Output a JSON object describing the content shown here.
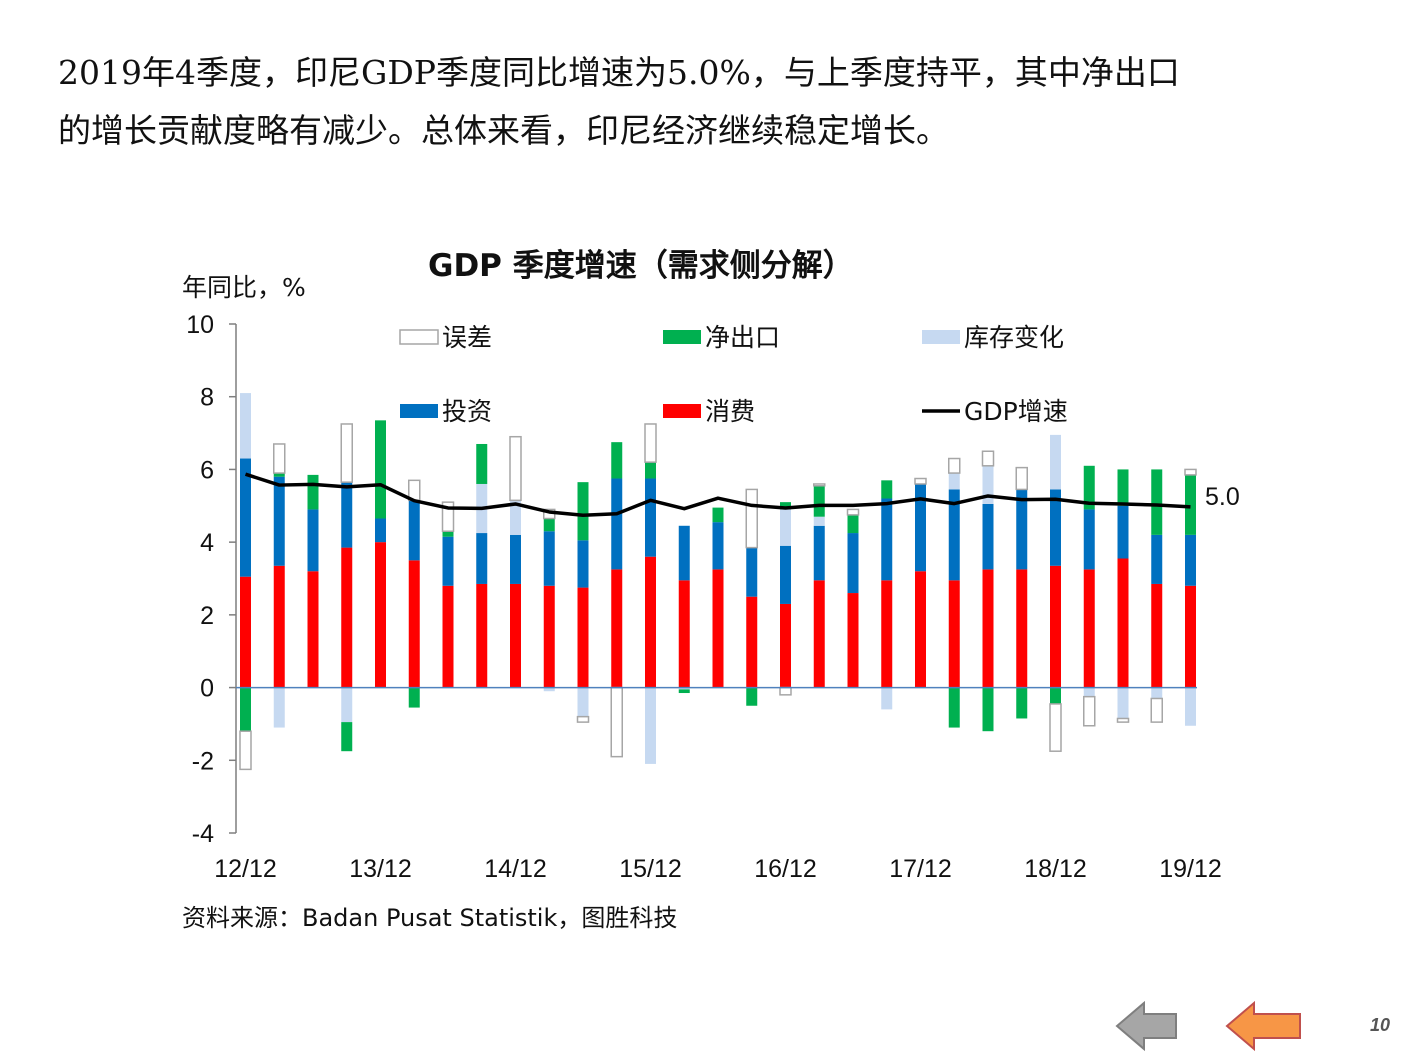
{
  "heading": {
    "line1": "2019年4季度，印尼GDP季度同比增速为5.0%，与上季度持平，其中净出口",
    "line2": "的增长贡献度略有减少。总体来看，印尼经济继续稳定增长。"
  },
  "footer": {
    "source": "资料来源：Badan Pusat Statistik，图胜科技",
    "page_number": "10",
    "back_icon": "left-arrow-gray-icon",
    "prev_icon": "left-arrow-orange-icon"
  },
  "colors": {
    "error": "#ffffff",
    "error_stroke": "#a6a6a6",
    "net_export": "#00b050",
    "inventory": "#c6d9f1",
    "investment": "#0070c0",
    "consumption": "#ff0000",
    "gdp_line": "#000000",
    "axis": "#7f7f7f",
    "zero_line": "#4f81bd",
    "nav_gray": "#a6a6a6",
    "nav_orange": "#f79646"
  },
  "chart_data": {
    "type": "bar",
    "stacked": true,
    "title": "GDP 季度增速（需求侧分解）",
    "ylabel": "年同比，%",
    "ylim": [
      -4,
      10
    ],
    "yticks": [
      "10",
      "8",
      "6",
      "4",
      "2",
      "0",
      "-2",
      "-4"
    ],
    "xtick_labels": [
      "12/12",
      "13/12",
      "14/12",
      "15/12",
      "16/12",
      "17/12",
      "18/12",
      "19/12"
    ],
    "xtick_indices": [
      0,
      4,
      8,
      12,
      16,
      20,
      24,
      28
    ],
    "categories": [
      "2012Q4",
      "2013Q1",
      "2013Q2",
      "2013Q3",
      "2013Q4",
      "2014Q1",
      "2014Q2",
      "2014Q3",
      "2014Q4",
      "2015Q1",
      "2015Q2",
      "2015Q3",
      "2015Q4",
      "2016Q1",
      "2016Q2",
      "2016Q3",
      "2016Q4",
      "2017Q1",
      "2017Q2",
      "2017Q3",
      "2017Q4",
      "2018Q1",
      "2018Q2",
      "2018Q3",
      "2018Q4",
      "2019Q1",
      "2019Q2",
      "2019Q3",
      "2019Q4"
    ],
    "legend": [
      "误差",
      "净出口",
      "库存变化",
      "投资",
      "消费",
      "GDP增速"
    ],
    "end_label": "5.0",
    "series": [
      {
        "name": "消费",
        "key": "consumption",
        "values": [
          3.05,
          3.35,
          3.2,
          3.85,
          4.0,
          3.5,
          2.8,
          2.85,
          2.85,
          2.8,
          2.75,
          3.25,
          3.6,
          2.95,
          3.25,
          2.5,
          2.3,
          2.95,
          2.6,
          2.95,
          3.2,
          2.95,
          3.25,
          3.25,
          3.35,
          3.25,
          3.55,
          2.85,
          2.8
        ]
      },
      {
        "name": "投资",
        "key": "investment",
        "values": [
          3.25,
          2.45,
          1.7,
          1.8,
          0.65,
          1.65,
          1.35,
          1.4,
          1.35,
          1.5,
          1.3,
          2.5,
          2.15,
          1.5,
          1.3,
          1.35,
          1.6,
          1.5,
          1.65,
          2.25,
          2.4,
          2.5,
          1.8,
          2.2,
          2.1,
          1.65,
          1.45,
          1.35,
          1.4
        ]
      },
      {
        "name": "库存变化",
        "key": "inventory",
        "values": [
          1.8,
          -1.1,
          0.0,
          -0.95,
          0.0,
          0.0,
          0.0,
          1.35,
          0.95,
          -0.1,
          -0.8,
          0.0,
          -2.1,
          -0.05,
          0.0,
          0.0,
          1.0,
          0.25,
          0.0,
          -0.6,
          0.0,
          0.45,
          1.05,
          0.0,
          1.5,
          -0.25,
          -0.85,
          -0.3,
          -1.05
        ]
      },
      {
        "name": "净出口",
        "key": "net_export",
        "values": [
          -1.2,
          0.1,
          0.95,
          -0.8,
          2.7,
          -0.55,
          0.15,
          1.1,
          0.0,
          0.35,
          1.6,
          1.0,
          0.45,
          -0.1,
          0.4,
          -0.5,
          0.2,
          0.85,
          0.5,
          0.5,
          0.0,
          -1.1,
          -1.2,
          -0.85,
          -0.45,
          1.2,
          1.0,
          1.8,
          1.65
        ]
      },
      {
        "name": "误差",
        "key": "error",
        "values": [
          -1.05,
          0.8,
          0.0,
          1.6,
          0.0,
          0.55,
          0.8,
          0.0,
          1.75,
          0.25,
          -0.15,
          -1.9,
          1.05,
          0.0,
          0.0,
          1.6,
          -0.2,
          0.05,
          0.15,
          0.0,
          0.15,
          0.4,
          0.4,
          0.6,
          -1.3,
          -0.8,
          -0.1,
          -0.65,
          0.15
        ]
      },
      {
        "name": "GDP增速",
        "key": "gdp",
        "type": "line",
        "values": [
          5.87,
          5.57,
          5.59,
          5.52,
          5.58,
          5.14,
          4.94,
          4.93,
          5.05,
          4.83,
          4.74,
          4.78,
          5.15,
          4.92,
          5.21,
          5.01,
          4.94,
          5.01,
          5.01,
          5.06,
          5.19,
          5.06,
          5.27,
          5.17,
          5.18,
          5.07,
          5.05,
          5.02,
          4.97
        ]
      }
    ]
  }
}
